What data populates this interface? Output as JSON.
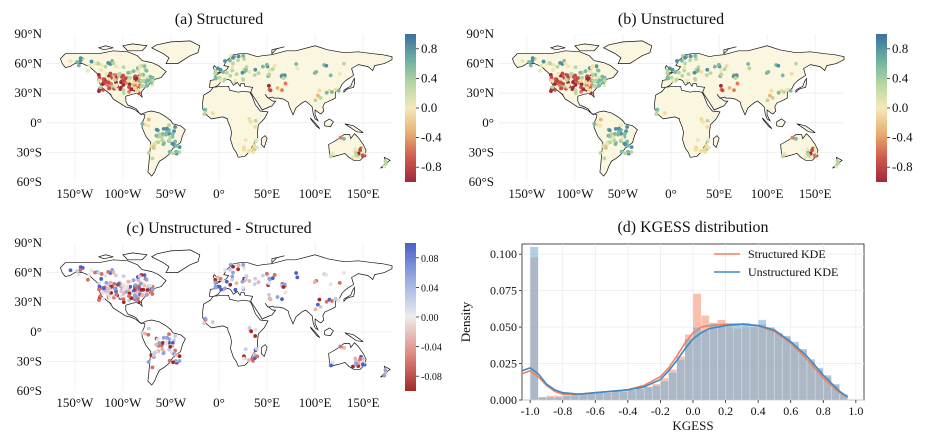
{
  "chart_data": [
    {
      "type": "map",
      "title": "(a) Structured",
      "lon_ticks": [
        "150°W",
        "100°W",
        "50°W",
        "0°",
        "50°E",
        "100°E",
        "150°E"
      ],
      "lat_ticks": [
        "90°N",
        "60°N",
        "30°N",
        "0°",
        "30°S",
        "60°S"
      ],
      "colorbar": {
        "ticks": [
          "0.8",
          "0.4",
          "0.0",
          "-0.4",
          "-0.8"
        ],
        "range": [
          -1.0,
          1.0
        ],
        "colors": [
          "#9e2a3c",
          "#cf5a4d",
          "#e9b073",
          "#f4e9b8",
          "#b5d6a3",
          "#6aaea0",
          "#3c6f9e"
        ]
      }
    },
    {
      "type": "map",
      "title": "(b) Unstructured",
      "lon_ticks": [
        "150°W",
        "100°W",
        "50°W",
        "0°",
        "50°E",
        "100°E",
        "150°E"
      ],
      "lat_ticks": [
        "90°N",
        "60°N",
        "30°N",
        "0°",
        "30°S",
        "60°S"
      ],
      "colorbar": {
        "ticks": [
          "0.8",
          "0.4",
          "0.0",
          "-0.4",
          "-0.8"
        ],
        "range": [
          -1.0,
          1.0
        ],
        "colors": [
          "#9e2a3c",
          "#cf5a4d",
          "#e9b073",
          "#f4e9b8",
          "#b5d6a3",
          "#6aaea0",
          "#3c6f9e"
        ]
      }
    },
    {
      "type": "map",
      "title": "(c) Unstructured - Structured",
      "lon_ticks": [
        "150°W",
        "100°W",
        "50°W",
        "0°",
        "50°E",
        "100°E",
        "150°E"
      ],
      "lat_ticks": [
        "90°N",
        "60°N",
        "30°N",
        "0°",
        "30°S",
        "60°S"
      ],
      "colorbar": {
        "ticks": [
          "0.08",
          "0.04",
          "0.00",
          "-0.04",
          "-0.08"
        ],
        "range": [
          -0.1,
          0.1
        ],
        "colors": [
          "#a02a2a",
          "#e08a80",
          "#ececec",
          "#9aaee0",
          "#4a60c8"
        ]
      }
    },
    {
      "type": "histogram",
      "title": "(d) KGESS distribution",
      "xlabel": "KGESS",
      "ylabel": "Density",
      "xlim": [
        -1.05,
        1.05
      ],
      "ylim": [
        0,
        0.107
      ],
      "xticks": [
        "-1.0",
        "-0.8",
        "-0.6",
        "-0.4",
        "-0.2",
        "0.0",
        "0.2",
        "0.4",
        "0.6",
        "0.8",
        "1.0"
      ],
      "yticks": [
        "0.000",
        "0.025",
        "0.050",
        "0.075",
        "0.100"
      ],
      "bin_width": 0.05,
      "bin_starts": [
        -1.0,
        -0.95,
        -0.9,
        -0.85,
        -0.8,
        -0.75,
        -0.7,
        -0.65,
        -0.6,
        -0.55,
        -0.5,
        -0.45,
        -0.4,
        -0.35,
        -0.3,
        -0.25,
        -0.2,
        -0.15,
        -0.1,
        -0.05,
        0.0,
        0.05,
        0.1,
        0.15,
        0.2,
        0.25,
        0.3,
        0.35,
        0.4,
        0.45,
        0.5,
        0.55,
        0.6,
        0.65,
        0.7,
        0.75,
        0.8,
        0.85,
        0.9
      ],
      "series": [
        {
          "name": "Structured KDE",
          "color": "#f08060",
          "hist": [
            0.098,
            0.002,
            0.003,
            0.003,
            0.004,
            0.004,
            0.004,
            0.005,
            0.005,
            0.005,
            0.006,
            0.006,
            0.007,
            0.008,
            0.009,
            0.011,
            0.015,
            0.021,
            0.03,
            0.045,
            0.073,
            0.058,
            0.052,
            0.055,
            0.05,
            0.049,
            0.05,
            0.05,
            0.052,
            0.049,
            0.046,
            0.043,
            0.038,
            0.034,
            0.026,
            0.021,
            0.016,
            0.01,
            0.004
          ],
          "kde_x": [
            -1.05,
            -1.0,
            -0.95,
            -0.9,
            -0.85,
            -0.8,
            -0.7,
            -0.6,
            -0.5,
            -0.4,
            -0.3,
            -0.2,
            -0.15,
            -0.1,
            -0.05,
            0.0,
            0.05,
            0.1,
            0.2,
            0.3,
            0.4,
            0.5,
            0.6,
            0.7,
            0.8,
            0.9,
            0.95
          ],
          "kde_y": [
            0.018,
            0.02,
            0.016,
            0.01,
            0.006,
            0.004,
            0.004,
            0.005,
            0.006,
            0.007,
            0.01,
            0.016,
            0.022,
            0.03,
            0.039,
            0.046,
            0.05,
            0.051,
            0.052,
            0.052,
            0.051,
            0.047,
            0.039,
            0.028,
            0.015,
            0.005,
            0.002
          ]
        },
        {
          "name": "Unstructured KDE",
          "color": "#3d88c6",
          "hist": [
            0.105,
            0.002,
            0.002,
            0.002,
            0.003,
            0.004,
            0.004,
            0.005,
            0.005,
            0.005,
            0.006,
            0.006,
            0.007,
            0.008,
            0.009,
            0.01,
            0.013,
            0.019,
            0.028,
            0.042,
            0.05,
            0.048,
            0.053,
            0.051,
            0.051,
            0.052,
            0.053,
            0.051,
            0.055,
            0.05,
            0.046,
            0.044,
            0.04,
            0.035,
            0.028,
            0.022,
            0.017,
            0.011,
            0.004
          ],
          "kde_x": [
            -1.05,
            -1.0,
            -0.95,
            -0.9,
            -0.85,
            -0.8,
            -0.7,
            -0.6,
            -0.5,
            -0.4,
            -0.3,
            -0.2,
            -0.15,
            -0.1,
            -0.05,
            0.0,
            0.05,
            0.1,
            0.2,
            0.3,
            0.4,
            0.5,
            0.6,
            0.7,
            0.8,
            0.9,
            0.95
          ],
          "kde_y": [
            0.02,
            0.022,
            0.018,
            0.011,
            0.007,
            0.005,
            0.004,
            0.005,
            0.006,
            0.007,
            0.009,
            0.014,
            0.02,
            0.027,
            0.035,
            0.042,
            0.046,
            0.049,
            0.051,
            0.052,
            0.051,
            0.048,
            0.04,
            0.03,
            0.017,
            0.006,
            0.002
          ]
        }
      ],
      "legend_position": "top-right"
    }
  ]
}
